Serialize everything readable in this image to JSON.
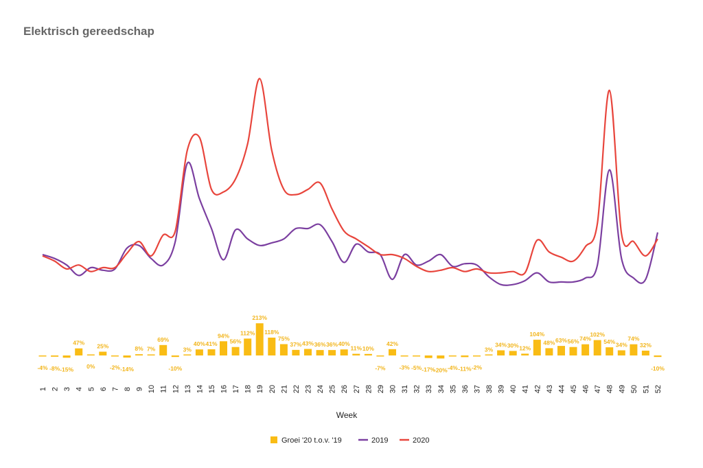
{
  "title": "Elektrisch gereedschap",
  "colors": {
    "bars": "#F9BC15",
    "bar_labels": "#F2B51C",
    "line_2019": "#7B3FA0",
    "line_2020": "#E8453C"
  },
  "chart_data": [
    {
      "type": "line",
      "title": "Elektrisch gereedschap",
      "x": [
        1,
        2,
        3,
        4,
        5,
        6,
        7,
        8,
        9,
        10,
        11,
        12,
        13,
        14,
        15,
        16,
        17,
        18,
        19,
        20,
        21,
        22,
        23,
        24,
        25,
        26,
        27,
        28,
        29,
        30,
        31,
        32,
        33,
        34,
        35,
        36,
        37,
        38,
        39,
        40,
        41,
        42,
        43,
        44,
        45,
        46,
        47,
        48,
        49,
        50,
        51,
        52
      ],
      "yaxis_labels_shown": false,
      "series": [
        {
          "name": "2019",
          "values": [
            30,
            27,
            22,
            14,
            20,
            18,
            19,
            35,
            37,
            27,
            22,
            40,
            100,
            73,
            50,
            26,
            49,
            42,
            37,
            39,
            42,
            50,
            50,
            53,
            40,
            24,
            38,
            32,
            30,
            11,
            30,
            22,
            25,
            30,
            21,
            23,
            22,
            13,
            7,
            7,
            10,
            16,
            9,
            9,
            9,
            12,
            22,
            95,
            27,
            12,
            11,
            47
          ]
        },
        {
          "name": "2020",
          "values": [
            29,
            25,
            19,
            22,
            17,
            20,
            20,
            31,
            40,
            29,
            45,
            48,
            110,
            120,
            80,
            78,
            88,
            115,
            165,
            110,
            80,
            76,
            80,
            85,
            65,
            48,
            42,
            36,
            30,
            30,
            27,
            21,
            17,
            18,
            20,
            17,
            19,
            16,
            16,
            17,
            16,
            41,
            32,
            28,
            25,
            36,
            54,
            156,
            46,
            40,
            29,
            42
          ]
        }
      ]
    },
    {
      "type": "bar",
      "title": "",
      "xlabel": "Week",
      "categories": [
        "1",
        "2",
        "3",
        "4",
        "5",
        "6",
        "7",
        "8",
        "9",
        "10",
        "11",
        "12",
        "13",
        "14",
        "15",
        "16",
        "17",
        "18",
        "19",
        "20",
        "21",
        "22",
        "23",
        "24",
        "25",
        "26",
        "27",
        "28",
        "29",
        "30",
        "31",
        "32",
        "33",
        "34",
        "35",
        "36",
        "37",
        "38",
        "39",
        "40",
        "41",
        "42",
        "43",
        "44",
        "45",
        "46",
        "47",
        "48",
        "49",
        "50",
        "51",
        "52"
      ],
      "series": [
        {
          "name": "Groei '20 t.o.v. '19",
          "values": [
            -4,
            -8,
            -15,
            47,
            0,
            25,
            -2,
            -14,
            8,
            7,
            69,
            -10,
            3,
            40,
            41,
            94,
            56,
            112,
            213,
            118,
            75,
            37,
            43,
            36,
            36,
            40,
            11,
            10,
            -7,
            42,
            -3,
            -5,
            -17,
            -20,
            -4,
            -11,
            -2,
            3,
            34,
            30,
            12,
            104,
            48,
            63,
            56,
            74,
            102,
            54,
            34,
            74,
            32,
            -10
          ],
          "labels": [
            "-4%",
            "-8%",
            "-15%",
            "47%",
            "0%",
            "25%",
            "-2%",
            "-14%",
            "8%",
            "7%",
            "69%",
            "-10%",
            "3%",
            "40%",
            "41%",
            "94%",
            "56%",
            "112%",
            "213%",
            "118%",
            "75%",
            "37%",
            "43%",
            "36%",
            "36%",
            "40%",
            "11%",
            "10%",
            "-7%",
            "42%",
            "-3%",
            "-5%",
            "-17%",
            "-20%",
            "-4%",
            "-11%",
            "-2%",
            "3%",
            "34%",
            "30%",
            "12%",
            "104%",
            "48%",
            "63%",
            "56%",
            "74%",
            "102%",
            "54%",
            "34%",
            "74%",
            "32%",
            "-10%"
          ]
        }
      ]
    }
  ],
  "legend": {
    "placement": "bottom",
    "items": [
      {
        "label": "Groei '20 t.o.v. '19",
        "marker": "square"
      },
      {
        "label": "2019",
        "marker": "line"
      },
      {
        "label": "2020",
        "marker": "line"
      }
    ]
  }
}
